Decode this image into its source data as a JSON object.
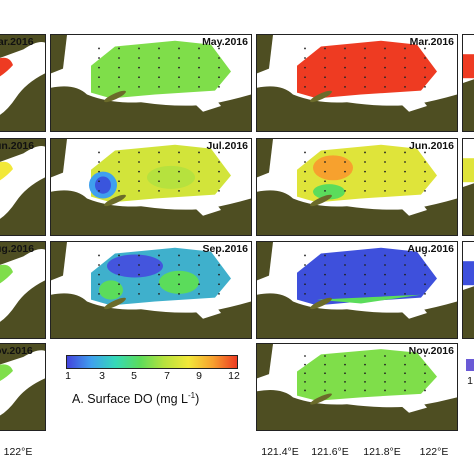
{
  "panels": {
    "r1c1": "lar.2016",
    "r1c2": "May.2016",
    "r1c3": "Mar.2016",
    "r2c1": "un.2016",
    "r2c2": "Jul.2016",
    "r2c3": "Jun.2016",
    "r3c1": "ug.2016",
    "r3c2": "Sep.2016",
    "r3c3": "Aug.2016",
    "r4c1": "ov.2016",
    "r4c3": "Nov.2016"
  },
  "legend": {
    "title_prefix": "A. Surface DO (mg L",
    "title_sup": "-1",
    "title_suffix": ")",
    "ticks": [
      "1",
      "3",
      "5",
      "7",
      "9",
      "12"
    ],
    "colors": [
      "#4444dd",
      "#3fa0ee",
      "#35d9b8",
      "#5bdc5b",
      "#b6e23e",
      "#f2e83a",
      "#f7a12e",
      "#ee3b22"
    ]
  },
  "axis": {
    "left_label": "122°E",
    "labels": [
      "121.4°E",
      "121.6°E",
      "121.8°E",
      "122°E"
    ],
    "right_label": "1"
  },
  "colors": {
    "land": "#4e4e22",
    "water": "#ffffff"
  }
}
